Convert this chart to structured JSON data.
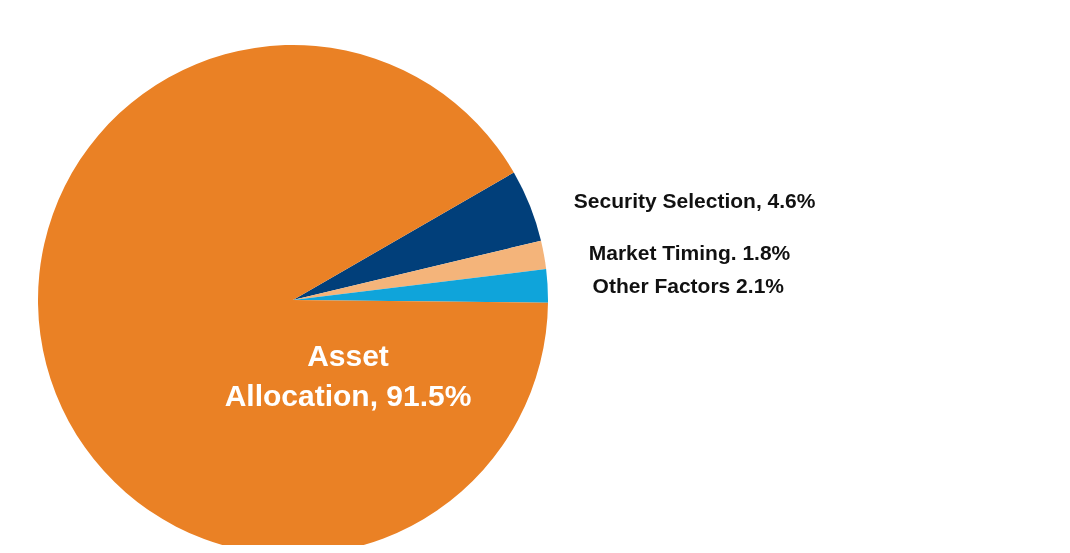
{
  "chart_data": {
    "type": "pie",
    "categories": [
      "Security Selection",
      "Market Timing",
      "Other Factors",
      "Asset Allocation"
    ],
    "value_labels": [
      ", 4.6%",
      ". 1.8%",
      " 2.1%",
      ", 91.5%"
    ],
    "values": [
      4.6,
      1.8,
      2.1,
      91.5
    ],
    "colors": [
      "#013f7a",
      "#f4b47a",
      "#0fa4da",
      "#ea8125"
    ],
    "legend": false
  }
}
